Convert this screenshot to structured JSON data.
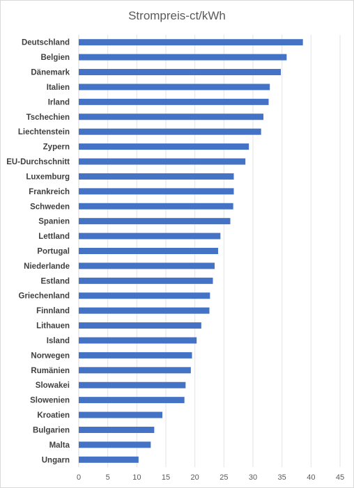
{
  "chart_data": {
    "type": "bar",
    "orientation": "horizontal",
    "title": "Strompreis-ct/kWh",
    "xlabel": "",
    "ylabel": "",
    "xlim": [
      0,
      45
    ],
    "x_ticks": [
      0,
      5,
      10,
      15,
      20,
      25,
      30,
      35,
      40,
      45
    ],
    "grid": "vertical",
    "legend": "none",
    "bar_color": "#4472c4",
    "categories": [
      "Deutschland",
      "Belgien",
      "Dänemark",
      "Italien",
      "Irland",
      "Tschechien",
      "Liechtenstein",
      "Zypern",
      "EU-Durchschnitt",
      "Luxemburg",
      "Frankreich",
      "Schweden",
      "Spanien",
      "Lettland",
      "Portugal",
      "Niederlande",
      "Estland",
      "Griechenland",
      "Finnland",
      "Lithauen",
      "Island",
      "Norwegen",
      "Rumänien",
      "Slowakei",
      "Slowenien",
      "Kroatien",
      "Bulgarien",
      "Malta",
      "Ungarn"
    ],
    "values": [
      38.6,
      35.8,
      34.8,
      32.9,
      32.7,
      31.8,
      31.4,
      29.3,
      28.7,
      26.7,
      26.7,
      26.6,
      26.1,
      24.4,
      24.0,
      23.4,
      23.1,
      22.6,
      22.5,
      21.1,
      20.3,
      19.5,
      19.3,
      18.4,
      18.2,
      14.4,
      13.0,
      12.4,
      10.3
    ]
  }
}
